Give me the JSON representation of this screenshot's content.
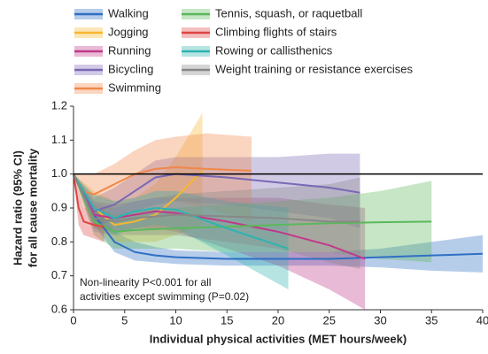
{
  "chart_data": {
    "type": "line",
    "xlabel": "Individual physical activities (MET hours/week)",
    "ylabel": [
      "Hazard ratio (95% CI)",
      "for all cause mortality"
    ],
    "annotation": [
      "Non-linearity P<0.001 for all",
      "activities except swimming (P=0.02)"
    ],
    "xlim": [
      0,
      40
    ],
    "xticks": [
      0,
      5,
      10,
      15,
      20,
      25,
      30,
      35,
      40
    ],
    "ylim": [
      0.6,
      1.2
    ],
    "yticks": [
      0.6,
      0.7,
      0.8,
      0.9,
      {
        "value": 1,
        "label": "1.0"
      },
      1.1,
      1.2
    ],
    "reference_line": 1,
    "series": [
      {
        "name": "Walking",
        "color": "#2f6fc4",
        "x": [
          0,
          2,
          4,
          6,
          8,
          10,
          15,
          20,
          25,
          30,
          35,
          40
        ],
        "values": [
          1,
          0.88,
          0.8,
          0.77,
          0.76,
          0.755,
          0.75,
          0.75,
          0.75,
          0.755,
          0.76,
          0.765
        ],
        "lower": [
          1,
          0.85,
          0.77,
          0.745,
          0.74,
          0.735,
          0.73,
          0.73,
          0.73,
          0.725,
          0.715,
          0.71
        ],
        "upper": [
          1,
          0.91,
          0.83,
          0.8,
          0.785,
          0.775,
          0.77,
          0.77,
          0.77,
          0.78,
          0.8,
          0.82
        ]
      },
      {
        "name": "Jogging",
        "color": "#f5b731",
        "x": [
          0,
          2,
          4,
          6,
          8,
          10,
          12.6
        ],
        "values": [
          1,
          0.9,
          0.85,
          0.86,
          0.88,
          0.93,
          1.01
        ],
        "lower": [
          1,
          0.85,
          0.8,
          0.8,
          0.8,
          0.82,
          0.85
        ],
        "upper": [
          1,
          0.95,
          0.92,
          0.93,
          0.97,
          1.05,
          1.18
        ]
      },
      {
        "name": "Running",
        "color": "#c0398a",
        "x": [
          0,
          2,
          4,
          6,
          8,
          10,
          15,
          20,
          25,
          28.5
        ],
        "values": [
          1,
          0.88,
          0.87,
          0.88,
          0.89,
          0.885,
          0.86,
          0.83,
          0.79,
          0.75
        ],
        "lower": [
          1,
          0.84,
          0.83,
          0.84,
          0.84,
          0.83,
          0.78,
          0.73,
          0.66,
          0.6
        ],
        "upper": [
          1,
          0.92,
          0.91,
          0.92,
          0.93,
          0.93,
          0.93,
          0.93,
          0.91,
          0.9
        ]
      },
      {
        "name": "Bicycling",
        "color": "#7a68b5",
        "x": [
          0,
          2,
          4,
          6,
          8,
          10,
          15,
          20,
          25,
          28
        ],
        "values": [
          1,
          0.89,
          0.91,
          0.95,
          0.99,
          1,
          0.99,
          0.975,
          0.96,
          0.945
        ],
        "lower": [
          1,
          0.85,
          0.86,
          0.89,
          0.91,
          0.92,
          0.91,
          0.89,
          0.87,
          0.84
        ],
        "upper": [
          1,
          0.93,
          0.96,
          1,
          1.04,
          1.05,
          1.05,
          1.05,
          1.06,
          1.06
        ]
      },
      {
        "name": "Swimming",
        "color": "#f0874a",
        "x": [
          0,
          1,
          2,
          4,
          6,
          8,
          10,
          13,
          17.4
        ],
        "values": [
          1,
          0.95,
          0.94,
          0.97,
          1,
          1.015,
          1.02,
          1.015,
          1.01
        ],
        "lower": [
          1,
          0.9,
          0.88,
          0.9,
          0.92,
          0.93,
          0.92,
          0.9,
          0.86
        ],
        "upper": [
          1,
          1,
          1,
          1.03,
          1.07,
          1.1,
          1.11,
          1.12,
          1.11
        ]
      },
      {
        "name": "Tennis, squash, or raquetball",
        "color": "#5bb85b",
        "x": [
          0,
          2,
          4,
          6,
          10,
          15,
          20,
          25,
          30,
          35
        ],
        "values": [
          1,
          0.86,
          0.83,
          0.835,
          0.84,
          0.845,
          0.85,
          0.855,
          0.858,
          0.86
        ],
        "lower": [
          1,
          0.82,
          0.78,
          0.78,
          0.78,
          0.77,
          0.77,
          0.77,
          0.75,
          0.74
        ],
        "upper": [
          1,
          0.9,
          0.88,
          0.89,
          0.9,
          0.91,
          0.92,
          0.93,
          0.95,
          0.98
        ]
      },
      {
        "name": "Climbing flights of stairs",
        "color": "#e04444",
        "x": [
          0,
          0.5,
          1,
          2,
          3
        ],
        "values": [
          1,
          0.9,
          0.86,
          0.85,
          0.845
        ],
        "lower": [
          1,
          0.85,
          0.82,
          0.81,
          0.8
        ],
        "upper": [
          1,
          0.95,
          0.9,
          0.89,
          0.9
        ]
      },
      {
        "name": "Rowing or callisthenics",
        "color": "#2fb3b0",
        "x": [
          0,
          2,
          4,
          6,
          8,
          10,
          15,
          21
        ],
        "values": [
          1,
          0.9,
          0.87,
          0.89,
          0.9,
          0.895,
          0.84,
          0.78
        ],
        "lower": [
          1,
          0.86,
          0.82,
          0.84,
          0.85,
          0.84,
          0.76,
          0.66
        ],
        "upper": [
          1,
          0.94,
          0.92,
          0.93,
          0.95,
          0.95,
          0.92,
          0.9
        ]
      },
      {
        "name": "Weight training or resistance exercises",
        "color": "#888888",
        "x": [
          0,
          2,
          4,
          6,
          10,
          15,
          20,
          25,
          28
        ],
        "values": [
          1,
          0.87,
          0.86,
          0.87,
          0.88,
          0.875,
          0.87,
          0.86,
          0.86
        ],
        "lower": [
          1,
          0.83,
          0.82,
          0.82,
          0.82,
          0.8,
          0.78,
          0.74,
          0.72
        ],
        "upper": [
          1,
          0.91,
          0.9,
          0.92,
          0.94,
          0.95,
          0.96,
          0.97,
          0.99
        ]
      }
    ]
  }
}
